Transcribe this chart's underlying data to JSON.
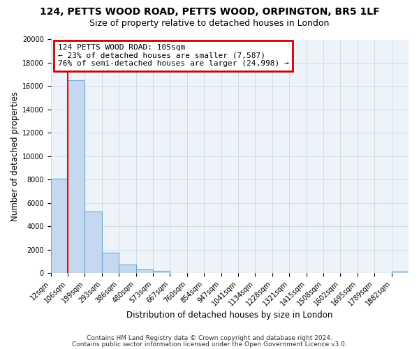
{
  "title": "124, PETTS WOOD ROAD, PETTS WOOD, ORPINGTON, BR5 1LF",
  "subtitle": "Size of property relative to detached houses in London",
  "xlabel": "Distribution of detached houses by size in London",
  "ylabel": "Number of detached properties",
  "bar_labels": [
    "12sqm",
    "106sqm",
    "199sqm",
    "293sqm",
    "386sqm",
    "480sqm",
    "573sqm",
    "667sqm",
    "760sqm",
    "854sqm",
    "947sqm",
    "1041sqm",
    "1134sqm",
    "1228sqm",
    "1321sqm",
    "1415sqm",
    "1508sqm",
    "1602sqm",
    "1695sqm",
    "1789sqm",
    "1882sqm"
  ],
  "bar_heights": [
    8100,
    16500,
    5300,
    1750,
    750,
    300,
    200,
    0,
    0,
    0,
    0,
    0,
    0,
    0,
    0,
    0,
    0,
    0,
    0,
    0,
    150
  ],
  "bar_color": "#c5d8ef",
  "bar_edge_color": "#6aaad4",
  "red_line_x": 1,
  "annotation_line1": "124 PETTS WOOD ROAD: 105sqm",
  "annotation_line2": "← 23% of detached houses are smaller (7,587)",
  "annotation_line3": "76% of semi-detached houses are larger (24,998) →",
  "annotation_box_color": "#ffffff",
  "annotation_box_edge_color": "#cc0000",
  "ylim": [
    0,
    20000
  ],
  "yticks": [
    0,
    2000,
    4000,
    6000,
    8000,
    10000,
    12000,
    14000,
    16000,
    18000,
    20000
  ],
  "footer1": "Contains HM Land Registry data © Crown copyright and database right 2024.",
  "footer2": "Contains public sector information licensed under the Open Government Licence v3.0.",
  "bg_color": "#ffffff",
  "grid_color": "#c8d8e8",
  "title_fontsize": 10,
  "subtitle_fontsize": 9,
  "axis_label_fontsize": 8.5,
  "tick_fontsize": 7,
  "annotation_fontsize": 8,
  "footer_fontsize": 6.5
}
